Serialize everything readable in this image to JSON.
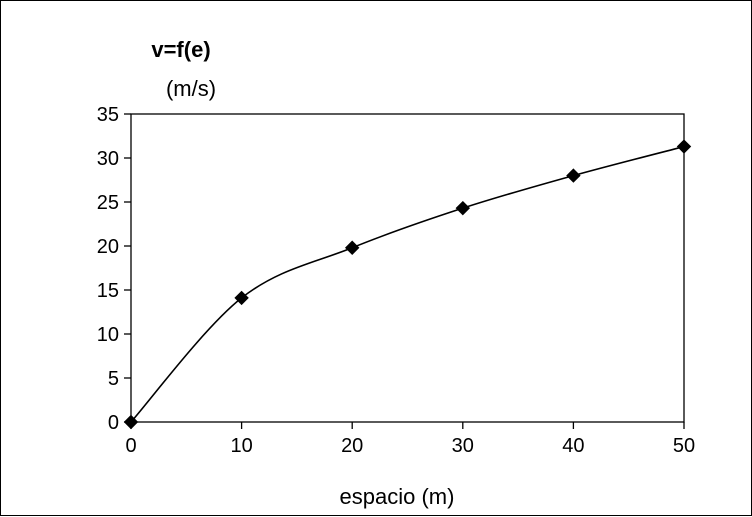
{
  "chart_data": {
    "type": "line",
    "title": "v=f(e)",
    "subtitle": "(m/s)",
    "xlabel": "espacio (m)",
    "ylabel": "",
    "xlim": [
      0,
      50
    ],
    "ylim": [
      0,
      35
    ],
    "x_ticks": [
      "0",
      "10",
      "20",
      "30",
      "40",
      "50"
    ],
    "y_ticks": [
      "0",
      "5",
      "10",
      "15",
      "20",
      "25",
      "30",
      "35"
    ],
    "grid": false,
    "series": [
      {
        "marker": "diamond",
        "color": "#000000",
        "smooth": true,
        "x": [
          0,
          10,
          20,
          30,
          40,
          50
        ],
        "y": [
          0,
          14.1,
          19.8,
          24.3,
          28.0,
          31.3
        ]
      }
    ]
  }
}
